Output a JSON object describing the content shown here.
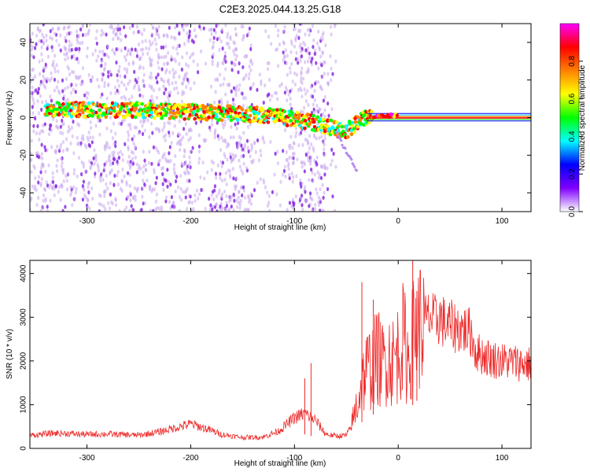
{
  "figure": {
    "title": "C2E3.2025.044.13.25.G18"
  },
  "chart_data": [
    {
      "type": "heatmap",
      "xlabel": "Height of straight line (km)",
      "ylabel": "Frequency (Hz)",
      "xlim": [
        -355,
        128
      ],
      "ylim": [
        -50,
        50
      ],
      "xticks": [
        -300,
        -200,
        -100,
        0,
        100
      ],
      "yticks": [
        -40,
        -20,
        0,
        20,
        40
      ],
      "colorbar": {
        "label": "Normalized spectral amplitude",
        "range": [
          0,
          1
        ],
        "ticks": [
          "0.0",
          "0.2",
          "0.4",
          "0.6",
          "0.8"
        ],
        "colors": [
          "#ffffff",
          "#8000ff",
          "#0000ff",
          "#00ffff",
          "#00ff00",
          "#ffff00",
          "#ff8000",
          "#ff0000",
          "#ff00ff"
        ]
      },
      "ridge": {
        "x": [
          -340,
          -300,
          -250,
          -200,
          -150,
          -120,
          -100,
          -80,
          -60,
          -50,
          -40,
          -30,
          0,
          128
        ],
        "frequency": [
          5,
          4,
          4,
          3,
          2,
          1,
          -1,
          -3,
          -6,
          -7,
          -3,
          0,
          1,
          0
        ]
      },
      "tail": {
        "x": [
          -60,
          -40
        ],
        "frequency": [
          -8,
          -28
        ]
      },
      "grid": false
    },
    {
      "type": "line",
      "xlabel": "Height of straight line (km)",
      "ylabel": "SNR (10 * v/v)",
      "xlim": [
        -355,
        128
      ],
      "ylim": [
        0,
        4300
      ],
      "xticks": [
        -300,
        -200,
        -100,
        0,
        100
      ],
      "yticks": [
        0,
        1000,
        2000,
        3000,
        4000
      ],
      "color": "#ee2a2a",
      "series": [
        {
          "x": [
            -355,
            -330,
            -300,
            -280,
            -250,
            -230,
            -210,
            -200,
            -185,
            -170,
            -150,
            -130,
            -115,
            -100,
            -90,
            -80,
            -70,
            -60,
            -50,
            -45,
            -40,
            -35,
            -30,
            -25,
            -20,
            -15,
            -10,
            -5,
            0,
            5,
            10,
            15,
            20,
            25,
            30,
            35,
            40,
            45,
            50,
            60,
            70,
            75,
            80,
            90,
            100,
            110,
            128
          ],
          "y": [
            300,
            350,
            320,
            330,
            300,
            380,
            500,
            560,
            450,
            320,
            250,
            260,
            400,
            700,
            800,
            650,
            330,
            280,
            300,
            500,
            1000,
            1500,
            1800,
            1900,
            2100,
            1900,
            2150,
            2000,
            2200,
            2500,
            2000,
            2600,
            2800,
            2900,
            3000,
            2900,
            3000,
            2850,
            2800,
            2750,
            2650,
            2200,
            2150,
            2050,
            2000,
            1980,
            1920
          ]
        }
      ],
      "spikes": [
        {
          "x": -90,
          "y": 1600
        },
        {
          "x": -84,
          "y": 1950
        },
        {
          "x": -35,
          "y": 3800
        },
        {
          "x": -24,
          "y": 3400
        },
        {
          "x": 14,
          "y": 4300
        },
        {
          "x": 18,
          "y": 3600
        }
      ],
      "grid": false
    }
  ]
}
